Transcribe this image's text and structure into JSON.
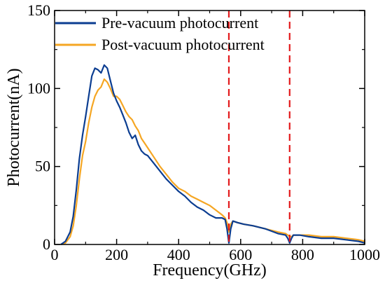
{
  "chart_data": {
    "type": "line",
    "title": "",
    "xlabel": "Frequency(GHz)",
    "ylabel": "Photocurrent(nA)",
    "xlim": [
      0,
      1000
    ],
    "ylim": [
      0,
      150
    ],
    "xticks": [
      0,
      200,
      400,
      600,
      800,
      1000
    ],
    "yticks": [
      0,
      50,
      100,
      150
    ],
    "xtick_labels": [
      "0",
      "200",
      "400",
      "600",
      "800",
      "1000"
    ],
    "ytick_labels": [
      "0",
      "50",
      "100",
      "150"
    ],
    "grid": false,
    "legend_position": "top-left",
    "vlines": [
      {
        "x": 562,
        "color": "#e31a1c",
        "style": "dashed"
      },
      {
        "x": 758,
        "color": "#e31a1c",
        "style": "dashed"
      }
    ],
    "series": [
      {
        "name": "Pre-vacuum photocurrent",
        "color": "#0b3d91",
        "x": [
          20,
          35,
          50,
          60,
          70,
          80,
          90,
          100,
          110,
          120,
          130,
          140,
          150,
          160,
          170,
          180,
          190,
          200,
          210,
          220,
          230,
          240,
          250,
          260,
          270,
          280,
          290,
          300,
          320,
          340,
          360,
          380,
          400,
          420,
          440,
          460,
          480,
          500,
          520,
          540,
          550,
          556,
          562,
          568,
          575,
          590,
          610,
          640,
          680,
          720,
          745,
          752,
          758,
          764,
          770,
          790,
          820,
          860,
          900,
          940,
          980,
          1000
        ],
        "y": [
          0,
          2,
          8,
          18,
          35,
          55,
          70,
          82,
          95,
          108,
          113,
          112,
          110,
          115,
          113,
          105,
          97,
          92,
          88,
          83,
          78,
          72,
          68,
          70,
          64,
          60,
          58,
          57,
          52,
          47,
          42,
          38,
          34,
          31,
          27,
          24,
          22,
          19,
          17,
          17,
          16,
          10,
          1,
          10,
          15,
          14,
          13,
          12,
          10,
          7,
          6,
          4,
          1,
          4,
          6,
          6,
          5,
          4,
          4,
          3,
          2,
          1
        ]
      },
      {
        "name": "Post-vacuum photocurrent",
        "color": "#f5a623",
        "x": [
          20,
          35,
          50,
          60,
          70,
          80,
          90,
          100,
          110,
          120,
          130,
          140,
          150,
          160,
          170,
          180,
          190,
          200,
          210,
          220,
          230,
          240,
          250,
          260,
          270,
          280,
          290,
          300,
          320,
          340,
          360,
          380,
          400,
          420,
          440,
          460,
          480,
          500,
          520,
          540,
          550,
          556,
          562,
          568,
          575,
          590,
          610,
          640,
          680,
          720,
          745,
          752,
          758,
          764,
          770,
          790,
          820,
          860,
          900,
          940,
          980,
          1000
        ],
        "y": [
          0,
          1,
          5,
          12,
          25,
          42,
          57,
          66,
          78,
          88,
          95,
          99,
          101,
          106,
          104,
          100,
          95,
          95,
          93,
          89,
          85,
          82,
          80,
          76,
          73,
          68,
          65,
          62,
          56,
          50,
          45,
          40,
          36,
          34,
          31,
          29,
          27,
          25,
          22,
          19,
          17,
          14,
          8,
          13,
          15,
          14,
          13,
          12,
          10,
          8,
          7,
          6,
          5,
          5,
          6,
          6,
          6,
          5,
          5,
          4,
          3,
          2
        ]
      }
    ]
  }
}
